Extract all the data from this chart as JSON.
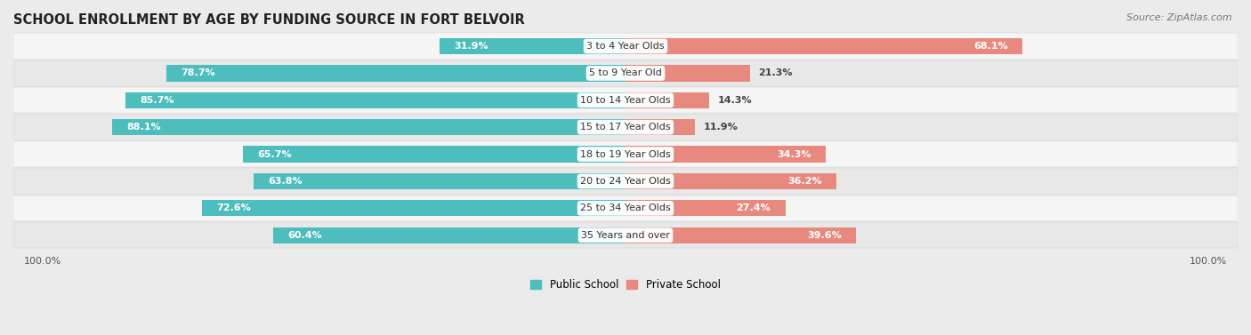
{
  "title": "SCHOOL ENROLLMENT BY AGE BY FUNDING SOURCE IN FORT BELVOIR",
  "source": "Source: ZipAtlas.com",
  "categories": [
    "3 to 4 Year Olds",
    "5 to 9 Year Old",
    "10 to 14 Year Olds",
    "15 to 17 Year Olds",
    "18 to 19 Year Olds",
    "20 to 24 Year Olds",
    "25 to 34 Year Olds",
    "35 Years and over"
  ],
  "public_values": [
    31.9,
    78.7,
    85.7,
    88.1,
    65.7,
    63.8,
    72.6,
    60.4
  ],
  "private_values": [
    68.1,
    21.3,
    14.3,
    11.9,
    34.3,
    36.2,
    27.4,
    39.6
  ],
  "public_color": "#4dbdbd",
  "private_color": "#e8897f",
  "bg_color": "#ebebeb",
  "row_bg_even": "#f5f5f5",
  "row_bg_odd": "#e8e8e8",
  "label_bg_color": "#ffffff",
  "bar_label_white": "#ffffff",
  "bar_label_dark": "#444444",
  "title_fontsize": 10.5,
  "source_fontsize": 8,
  "bar_label_fontsize": 8,
  "category_label_fontsize": 8,
  "legend_fontsize": 8.5,
  "axis_tick_fontsize": 8
}
